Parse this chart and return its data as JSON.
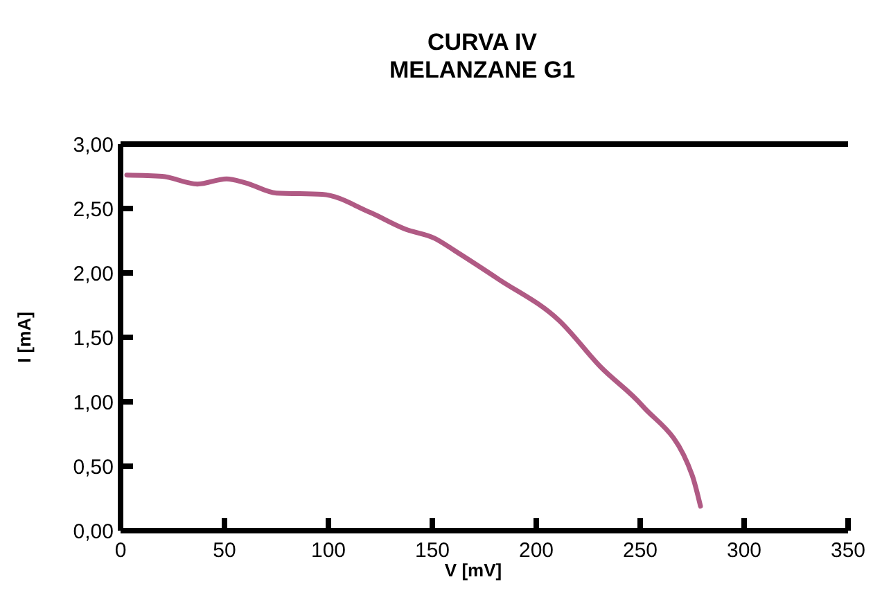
{
  "chart_data": {
    "type": "line",
    "title": "CURVA IV\nMELANZANE G1",
    "xlabel": "V [mV]",
    "ylabel": "I [mA]",
    "xlim": [
      0,
      350
    ],
    "xticks": [
      0,
      50,
      100,
      150,
      200,
      250,
      300,
      350
    ],
    "ylim": [
      0,
      3
    ],
    "yticks": [
      {
        "value": 0,
        "label": "0,00"
      },
      {
        "value": 0.5,
        "label": "0,50"
      },
      {
        "value": 1,
        "label": "1,00"
      },
      {
        "value": 1.5,
        "label": "1,50"
      },
      {
        "value": 2,
        "label": "2,00"
      },
      {
        "value": 2.5,
        "label": "2,50"
      },
      {
        "value": 3,
        "label": "3,00"
      }
    ],
    "grid": false,
    "marker": "none",
    "line_style": "solid",
    "series": [
      {
        "color": "#b05a84",
        "x": [
          3,
          20,
          37,
          51,
          60,
          75,
          97,
          120,
          137,
          151,
          162,
          182,
          211,
          231,
          251,
          275,
          279
        ],
        "values": [
          2.76,
          2.75,
          2.69,
          2.73,
          2.7,
          2.62,
          2.61,
          2.47,
          2.34,
          2.27,
          2.16,
          1.95,
          1.63,
          1.27,
          0.97,
          0.43,
          0.19
        ]
      }
    ]
  }
}
